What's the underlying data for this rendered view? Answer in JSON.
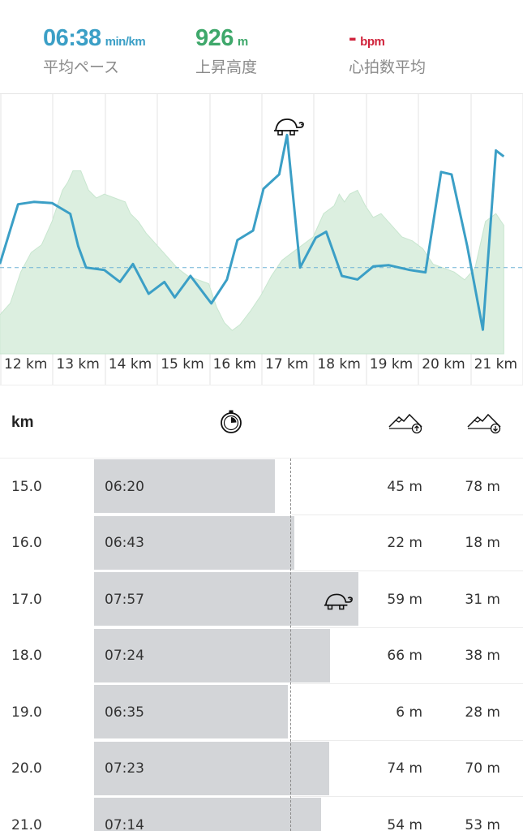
{
  "summary": {
    "pace": {
      "value": "06:38",
      "unit": "min/km",
      "label": "平均ペース",
      "color": "#3b9fc6"
    },
    "ascent": {
      "value": "926",
      "unit": "m",
      "label": "上昇高度",
      "color": "#3fa86b"
    },
    "heart_rate": {
      "value": "-",
      "unit": "bpm",
      "label": "心拍数平均",
      "color": "#d0233b"
    }
  },
  "chart_data": {
    "type": "line",
    "x_tick_labels": [
      "12 km",
      "13 km",
      "14 km",
      "15 km",
      "16 km",
      "17 km",
      "18 km",
      "19 km",
      "20 km",
      "21 km"
    ],
    "series": [
      {
        "name": "",
        "kind": "line",
        "color": "#3b9fc6",
        "x": [
          11.5,
          11.85,
          12.15,
          12.5,
          12.85,
          13.0,
          13.15,
          13.5,
          13.8,
          14.05,
          14.35,
          14.65,
          14.85,
          15.15,
          15.55,
          15.85,
          16.05,
          16.35,
          16.55,
          16.85,
          17.0,
          17.25,
          17.55,
          17.75,
          18.05,
          18.35,
          18.65,
          18.95,
          19.35,
          19.65,
          19.95,
          20.15,
          20.45,
          20.75,
          21.0,
          21.15
        ],
        "y": [
          6.35,
          5.85,
          5.83,
          5.84,
          5.93,
          6.2,
          6.38,
          6.4,
          6.5,
          6.35,
          6.6,
          6.5,
          6.63,
          6.45,
          6.68,
          6.48,
          6.15,
          6.07,
          5.72,
          5.6,
          5.27,
          6.38,
          6.13,
          6.08,
          6.45,
          6.48,
          6.37,
          6.36,
          6.4,
          6.42,
          5.58,
          5.6,
          6.2,
          6.9,
          5.4,
          5.45
        ]
      },
      {
        "name": "",
        "kind": "area",
        "color": "#dff0e3",
        "x": [
          11.5,
          11.7,
          11.9,
          12.1,
          12.3,
          12.5,
          12.7,
          12.8,
          12.9,
          13.05,
          13.2,
          13.35,
          13.5,
          13.7,
          13.9,
          14.0,
          14.15,
          14.3,
          14.5,
          14.7,
          14.9,
          15.1,
          15.3,
          15.5,
          15.65,
          15.8,
          15.95,
          16.1,
          16.3,
          16.5,
          16.7,
          16.9,
          17.1,
          17.3,
          17.5,
          17.7,
          17.9,
          18.0,
          18.1,
          18.2,
          18.35,
          18.5,
          18.65,
          18.8,
          19.0,
          19.2,
          19.4,
          19.6,
          19.8,
          20.0,
          20.2,
          20.4,
          20.6,
          20.8,
          21.0,
          21.15
        ],
        "y": [
          100,
          130,
          210,
          260,
          280,
          340,
          420,
          440,
          470,
          470,
          420,
          400,
          410,
          400,
          390,
          360,
          340,
          310,
          280,
          250,
          220,
          200,
          190,
          180,
          120,
          80,
          60,
          75,
          110,
          150,
          200,
          240,
          260,
          280,
          300,
          360,
          380,
          410,
          390,
          410,
          420,
          380,
          350,
          360,
          330,
          300,
          290,
          270,
          230,
          220,
          210,
          190,
          220,
          340,
          360,
          330
        ]
      }
    ],
    "y_pace_reference": 6.38,
    "turtle_marker_km": 17.0
  },
  "table": {
    "header": {
      "km": "km",
      "pace_icon": "stopwatch-icon",
      "ascent_icon": "mountain-up-icon",
      "descent_icon": "mountain-down-icon"
    },
    "rows": [
      {
        "km": "15.0",
        "pace": "06:20",
        "pace_sec": 380,
        "up": "45 m",
        "down": "78 m",
        "slowest": false
      },
      {
        "km": "16.0",
        "pace": "06:43",
        "pace_sec": 403,
        "up": "22 m",
        "down": "18 m",
        "slowest": false
      },
      {
        "km": "17.0",
        "pace": "07:57",
        "pace_sec": 477,
        "up": "59 m",
        "down": "31 m",
        "slowest": true
      },
      {
        "km": "18.0",
        "pace": "07:24",
        "pace_sec": 444,
        "up": "66 m",
        "down": "38 m",
        "slowest": false
      },
      {
        "km": "19.0",
        "pace": "06:35",
        "pace_sec": 395,
        "up": "6 m",
        "down": "28 m",
        "slowest": false
      },
      {
        "km": "20.0",
        "pace": "07:23",
        "pace_sec": 443,
        "up": "74 m",
        "down": "70 m",
        "slowest": false
      },
      {
        "km": "21.0",
        "pace": "07:14",
        "pace_sec": 434,
        "up": "54 m",
        "down": "53 m",
        "slowest": false
      }
    ],
    "average_pace_sec": 398
  }
}
